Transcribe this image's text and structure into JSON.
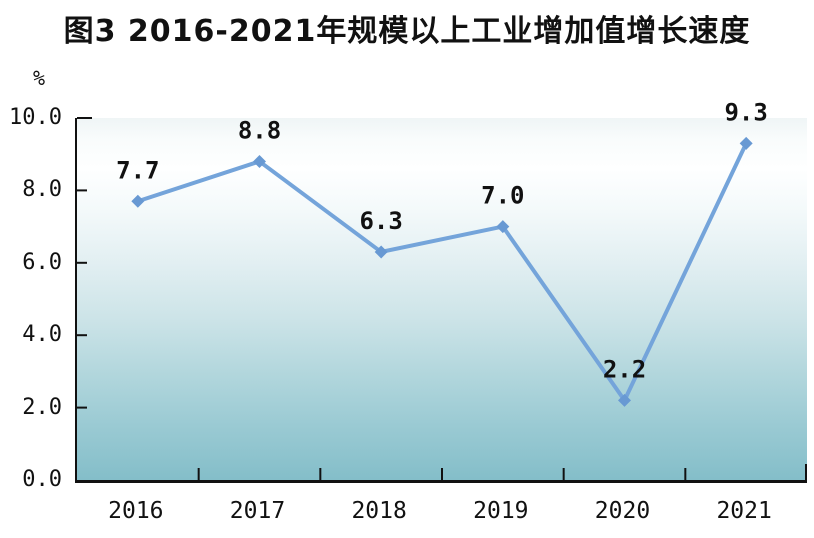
{
  "title": "图3 2016-2021年规模以上工业增加值增长速度",
  "chart_data": {
    "type": "line",
    "title": "图3 2016-2021年规模以上工业增加值增长速度",
    "unit_label": "%",
    "categories": [
      "2016",
      "2017",
      "2018",
      "2019",
      "2020",
      "2021"
    ],
    "series": [
      {
        "name": "规模以上工业增加值增长速度",
        "values": [
          7.7,
          8.8,
          6.3,
          7.0,
          2.2,
          9.3
        ]
      }
    ],
    "point_labels": [
      "7.7",
      "8.8",
      "6.3",
      "7.0",
      "2.2",
      "9.3"
    ],
    "ylim": [
      0.0,
      10.0
    ],
    "ytick_labels": [
      "10.0",
      "8.0",
      "6.0",
      "4.0",
      "2.0",
      "0.0"
    ],
    "grid": false,
    "legend_position": "none",
    "line_color": "#74a4da",
    "marker_color": "#6899d3",
    "marker_shape": "diamond",
    "axis_color": "#111111",
    "label_color": "#111111",
    "plot_bg_top_color": "#feffff",
    "plot_bg_bottom_color": "#84bec9"
  }
}
